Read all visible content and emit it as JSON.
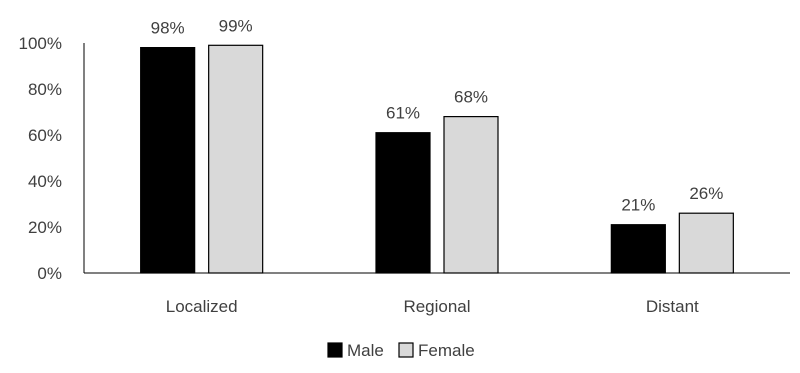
{
  "chart_data": {
    "type": "bar",
    "title": "",
    "xlabel": "",
    "ylabel": "",
    "categories": [
      "Localized",
      "Regional",
      "Distant"
    ],
    "series": [
      {
        "name": "Male",
        "values": [
          98,
          61,
          21
        ],
        "labels": [
          "98%",
          "61%",
          "21%"
        ],
        "color": "#000000"
      },
      {
        "name": "Female",
        "values": [
          99,
          68,
          26
        ],
        "labels": [
          "99%",
          "68%",
          "26%"
        ],
        "color": "#d9d9d9"
      }
    ],
    "ylim": [
      0,
      100
    ],
    "yticks": [
      0,
      20,
      40,
      60,
      80,
      100
    ],
    "ytick_labels": [
      "0%",
      "20%",
      "40%",
      "60%",
      "80%",
      "100%"
    ],
    "grid": false,
    "legend_position": "bottom",
    "bar_outline_color": "#000000"
  }
}
